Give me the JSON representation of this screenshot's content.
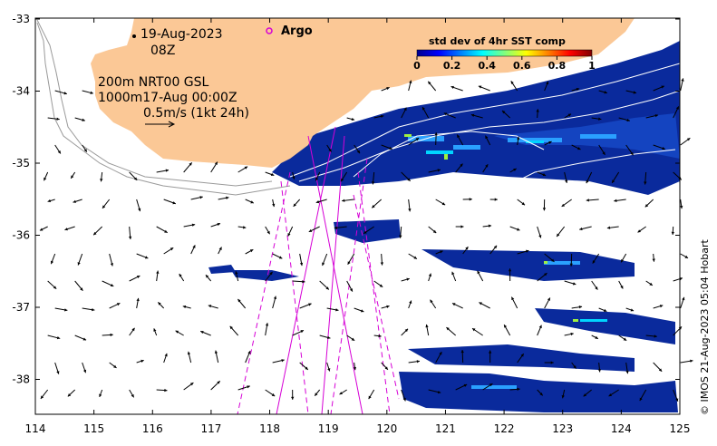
{
  "map": {
    "date_label": "19-Aug-2023",
    "time_label": "08Z",
    "legend_line1": "200m  NRT00 GSL",
    "legend_line2": "1000m17-Aug 00:00Z",
    "scale_label": "0.5m/s (1kt 24h)",
    "argo_label": "Argo",
    "credit": "© IMOS 21-Aug-2023 05:04 Hobart",
    "x_ticks": [
      "114",
      "115",
      "116",
      "117",
      "118",
      "119",
      "120",
      "121",
      "122",
      "123",
      "124",
      "125"
    ],
    "y_ticks": [
      "-33",
      "-34",
      "-35",
      "-36",
      "-37",
      "-38"
    ],
    "colors": {
      "land": "#fbc896",
      "ocean": "#ffffff",
      "sst_low": "#0a2a9c",
      "track": "#d600d6",
      "contour": "#9a9a9a"
    }
  },
  "colorbar": {
    "title": "std dev of 4hr SST comp",
    "ticks": [
      "0",
      "0.2",
      "0.4",
      "0.6",
      "0.8",
      "1"
    ],
    "range": [
      0,
      1
    ],
    "colormap": "jet"
  }
}
